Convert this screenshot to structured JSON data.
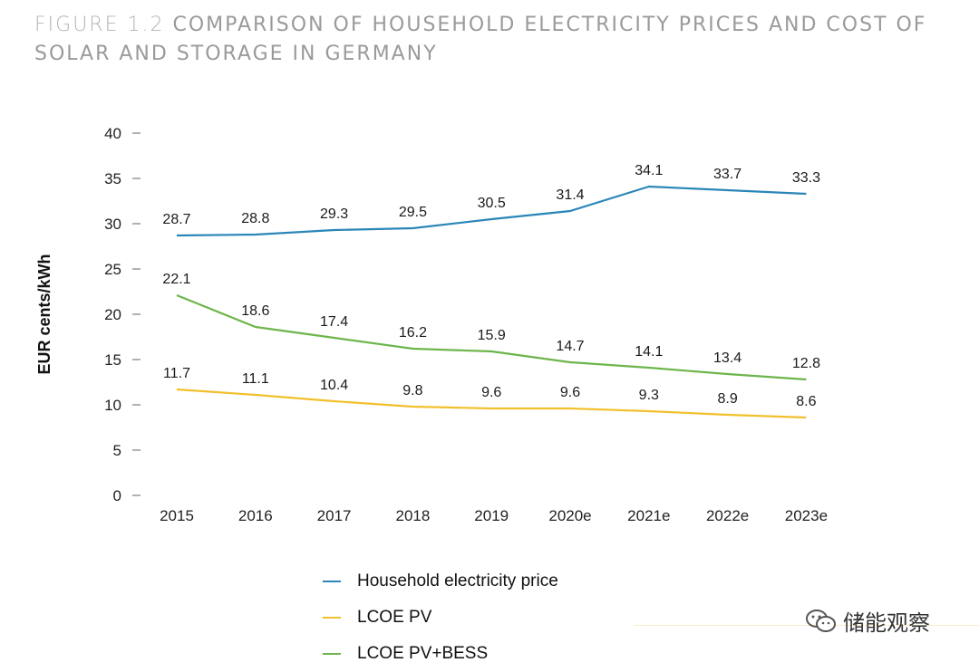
{
  "title_lead": "FIGURE 1.2 ",
  "title_rest": "COMPARISON OF HOUSEHOLD ELECTRICITY PRICES AND COST OF SOLAR AND STORAGE IN GERMANY",
  "watermark": "储能观察",
  "colors": {
    "household": "#2a86b8",
    "pv": "#f2c02d",
    "pv_bess": "#6db54b"
  },
  "chart_data": {
    "type": "line",
    "title": "",
    "xlabel": "",
    "ylabel": "EUR cents/kWh",
    "ylim": [
      0,
      40
    ],
    "yticks": [
      0,
      5,
      10,
      15,
      20,
      25,
      30,
      35,
      40
    ],
    "categories": [
      "2015",
      "2016",
      "2017",
      "2018",
      "2019",
      "2020e",
      "2021e",
      "2022e",
      "2023e"
    ],
    "series": [
      {
        "name": "Household electricity price",
        "color": "#2a86b8",
        "values": [
          28.7,
          28.8,
          29.3,
          29.5,
          30.5,
          31.4,
          34.1,
          33.7,
          33.3
        ]
      },
      {
        "name": "LCOE PV",
        "color": "#f2c02d",
        "values": [
          11.7,
          11.1,
          10.4,
          9.8,
          9.6,
          9.6,
          9.3,
          8.9,
          8.6
        ]
      },
      {
        "name": "LCOE PV+BESS",
        "color": "#6db54b",
        "values": [
          22.1,
          18.6,
          17.4,
          16.2,
          15.9,
          14.7,
          14.1,
          13.4,
          12.8
        ]
      }
    ],
    "legend_position": "bottom"
  }
}
